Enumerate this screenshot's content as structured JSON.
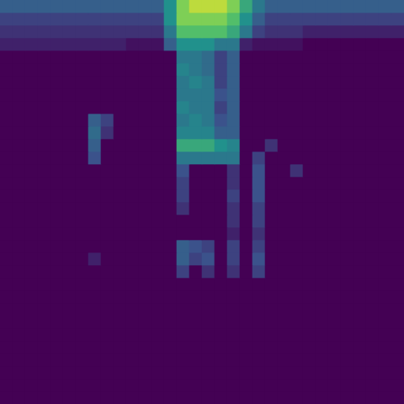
{
  "chart_data": {
    "type": "heatmap",
    "tick_labels": false,
    "grid": false,
    "cells": [
      [
        0.3,
        0.3,
        0.3,
        0.3,
        0.3,
        0.3,
        0.3,
        0.3,
        0.3,
        0.3,
        0.3,
        0.3,
        0.3,
        0.5,
        0.8,
        0.9,
        0.9,
        0.9,
        0.8,
        0.6,
        0.4,
        0.3,
        0.3,
        0.3,
        0.3,
        0.3,
        0.3,
        0.3,
        0.3,
        0.3,
        0.3,
        0.3
      ],
      [
        0.2,
        0.2,
        0.2,
        0.2,
        0.2,
        0.2,
        0.2,
        0.2,
        0.2,
        0.2,
        0.2,
        0.2,
        0.2,
        0.5,
        0.8,
        0.8,
        0.8,
        0.8,
        0.7,
        0.5,
        0.3,
        0.2,
        0.2,
        0.2,
        0.2,
        0.2,
        0.2,
        0.2,
        0.2,
        0.2,
        0.2,
        0.2
      ],
      [
        0.15,
        0.15,
        0.15,
        0.15,
        0.15,
        0.15,
        0.15,
        0.15,
        0.15,
        0.15,
        0.15,
        0.15,
        0.15,
        0.4,
        0.7,
        0.7,
        0.7,
        0.7,
        0.6,
        0.4,
        0.2,
        0.15,
        0.15,
        0.15,
        0.1,
        0.1,
        0.1,
        0.1,
        0.1,
        0.1,
        0.1,
        0.1
      ],
      [
        0.1,
        0.1,
        0.1,
        0.1,
        0.1,
        0.1,
        0.1,
        0.1,
        0.1,
        0.1,
        0.05,
        0.05,
        0.05,
        0.3,
        0.5,
        0.5,
        0.5,
        0.4,
        0.4,
        0.1,
        0.05,
        0.05,
        0.05,
        0.05,
        0,
        0,
        0,
        0,
        0,
        0,
        0,
        0
      ],
      [
        0,
        0,
        0,
        0,
        0,
        0,
        0,
        0,
        0,
        0,
        0,
        0,
        0,
        0,
        0.4,
        0.4,
        0.35,
        0.2,
        0.3,
        0,
        0,
        0,
        0,
        0,
        0,
        0,
        0,
        0,
        0,
        0,
        0,
        0
      ],
      [
        0,
        0,
        0,
        0,
        0,
        0,
        0,
        0,
        0,
        0,
        0,
        0,
        0,
        0,
        0.45,
        0.4,
        0.35,
        0.2,
        0.3,
        0,
        0,
        0,
        0,
        0,
        0,
        0,
        0,
        0,
        0,
        0,
        0,
        0
      ],
      [
        0,
        0,
        0,
        0,
        0,
        0,
        0,
        0,
        0,
        0,
        0,
        0,
        0,
        0,
        0.4,
        0.45,
        0.4,
        0.2,
        0.3,
        0,
        0,
        0,
        0,
        0,
        0,
        0,
        0,
        0,
        0,
        0,
        0,
        0
      ],
      [
        0,
        0,
        0,
        0,
        0,
        0,
        0,
        0,
        0,
        0,
        0,
        0,
        0,
        0,
        0.4,
        0.4,
        0.4,
        0.25,
        0.3,
        0,
        0,
        0,
        0,
        0,
        0,
        0,
        0,
        0,
        0,
        0,
        0,
        0
      ],
      [
        0,
        0,
        0,
        0,
        0,
        0,
        0,
        0,
        0,
        0,
        0,
        0,
        0,
        0,
        0.45,
        0.4,
        0.4,
        0.2,
        0.3,
        0,
        0,
        0,
        0,
        0,
        0,
        0,
        0,
        0,
        0,
        0,
        0,
        0
      ],
      [
        0,
        0,
        0,
        0,
        0,
        0,
        0,
        0.3,
        0.2,
        0,
        0,
        0,
        0,
        0,
        0.4,
        0.45,
        0.4,
        0.25,
        0.3,
        0,
        0,
        0,
        0,
        0,
        0,
        0,
        0,
        0,
        0,
        0,
        0,
        0
      ],
      [
        0,
        0,
        0,
        0,
        0,
        0,
        0,
        0.35,
        0.15,
        0,
        0,
        0,
        0,
        0,
        0.45,
        0.45,
        0.45,
        0.3,
        0.3,
        0,
        0,
        0,
        0,
        0,
        0,
        0,
        0,
        0,
        0,
        0,
        0,
        0
      ],
      [
        0,
        0,
        0,
        0,
        0,
        0,
        0,
        0.3,
        0,
        0,
        0,
        0,
        0,
        0,
        0.6,
        0.6,
        0.6,
        0.5,
        0.45,
        0,
        0,
        0.15,
        0,
        0,
        0,
        0,
        0,
        0,
        0,
        0,
        0,
        0
      ],
      [
        0,
        0,
        0,
        0,
        0,
        0,
        0,
        0.25,
        0,
        0,
        0,
        0,
        0,
        0,
        0.4,
        0.4,
        0.4,
        0.4,
        0.4,
        0,
        0.2,
        0,
        0,
        0,
        0,
        0,
        0,
        0,
        0,
        0,
        0,
        0
      ],
      [
        0,
        0,
        0,
        0,
        0,
        0,
        0,
        0,
        0,
        0,
        0,
        0,
        0,
        0,
        0.25,
        0,
        0,
        0,
        0.15,
        0,
        0.25,
        0,
        0,
        0.15,
        0,
        0,
        0,
        0,
        0,
        0,
        0,
        0
      ],
      [
        0,
        0,
        0,
        0,
        0,
        0,
        0,
        0,
        0,
        0,
        0,
        0,
        0,
        0,
        0.2,
        0,
        0,
        0,
        0.15,
        0,
        0.25,
        0,
        0,
        0,
        0,
        0,
        0,
        0,
        0,
        0,
        0,
        0
      ],
      [
        0,
        0,
        0,
        0,
        0,
        0,
        0,
        0,
        0,
        0,
        0,
        0,
        0,
        0,
        0.2,
        0,
        0,
        0,
        0.2,
        0,
        0.25,
        0,
        0,
        0,
        0,
        0,
        0,
        0,
        0,
        0,
        0,
        0
      ],
      [
        0,
        0,
        0,
        0,
        0,
        0,
        0,
        0,
        0,
        0,
        0,
        0,
        0,
        0,
        0.15,
        0,
        0,
        0,
        0.15,
        0,
        0.2,
        0,
        0,
        0,
        0,
        0,
        0,
        0,
        0,
        0,
        0,
        0
      ],
      [
        0,
        0,
        0,
        0,
        0,
        0,
        0,
        0,
        0,
        0,
        0,
        0,
        0,
        0,
        0,
        0,
        0,
        0,
        0.15,
        0,
        0.2,
        0,
        0,
        0,
        0,
        0,
        0,
        0,
        0,
        0,
        0,
        0
      ],
      [
        0,
        0,
        0,
        0,
        0,
        0,
        0,
        0,
        0,
        0,
        0,
        0,
        0,
        0,
        0,
        0,
        0,
        0,
        0.1,
        0,
        0.15,
        0,
        0,
        0,
        0,
        0,
        0,
        0,
        0,
        0,
        0,
        0
      ],
      [
        0,
        0,
        0,
        0,
        0,
        0,
        0,
        0,
        0,
        0,
        0,
        0,
        0,
        0,
        0.3,
        0.25,
        0.2,
        0,
        0.2,
        0,
        0.2,
        0,
        0,
        0,
        0,
        0,
        0,
        0,
        0,
        0,
        0,
        0
      ],
      [
        0,
        0,
        0,
        0,
        0,
        0,
        0,
        0.1,
        0,
        0,
        0,
        0,
        0,
        0,
        0.3,
        0.2,
        0.25,
        0,
        0.2,
        0,
        0.25,
        0,
        0,
        0,
        0,
        0,
        0,
        0,
        0,
        0,
        0,
        0
      ],
      [
        0,
        0,
        0,
        0,
        0,
        0,
        0,
        0,
        0,
        0,
        0,
        0,
        0,
        0,
        0.2,
        0,
        0.15,
        0,
        0.15,
        0,
        0.2,
        0,
        0,
        0,
        0,
        0,
        0,
        0,
        0,
        0,
        0,
        0
      ],
      [
        0,
        0,
        0,
        0,
        0,
        0,
        0,
        0,
        0,
        0,
        0,
        0,
        0,
        0,
        0,
        0,
        0,
        0,
        0,
        0,
        0,
        0,
        0,
        0,
        0,
        0,
        0,
        0,
        0,
        0,
        0,
        0
      ],
      [
        0,
        0,
        0,
        0,
        0,
        0,
        0,
        0,
        0,
        0,
        0,
        0,
        0,
        0,
        0,
        0,
        0,
        0,
        0,
        0,
        0,
        0,
        0,
        0,
        0,
        0,
        0,
        0,
        0,
        0,
        0,
        0
      ],
      [
        0,
        0,
        0,
        0,
        0,
        0,
        0,
        0,
        0,
        0,
        0,
        0,
        0,
        0,
        0,
        0,
        0,
        0,
        0,
        0,
        0,
        0,
        0,
        0,
        0,
        0,
        0,
        0,
        0,
        0,
        0,
        0
      ],
      [
        0,
        0,
        0,
        0,
        0,
        0,
        0,
        0,
        0,
        0,
        0,
        0,
        0,
        0,
        0,
        0,
        0,
        0,
        0,
        0,
        0,
        0,
        0,
        0,
        0,
        0,
        0,
        0,
        0,
        0,
        0,
        0
      ],
      [
        0,
        0,
        0,
        0,
        0,
        0,
        0,
        0,
        0,
        0,
        0,
        0,
        0,
        0,
        0,
        0,
        0,
        0,
        0,
        0,
        0,
        0,
        0,
        0,
        0,
        0,
        0,
        0,
        0,
        0,
        0,
        0
      ],
      [
        0,
        0,
        0,
        0,
        0,
        0,
        0,
        0,
        0,
        0,
        0,
        0,
        0,
        0,
        0,
        0,
        0,
        0,
        0,
        0,
        0,
        0,
        0,
        0,
        0,
        0,
        0,
        0,
        0,
        0,
        0,
        0
      ],
      [
        0,
        0,
        0,
        0,
        0,
        0,
        0,
        0,
        0,
        0,
        0,
        0,
        0,
        0,
        0,
        0,
        0,
        0,
        0,
        0,
        0,
        0,
        0,
        0,
        0,
        0,
        0,
        0,
        0,
        0,
        0,
        0
      ],
      [
        0,
        0,
        0,
        0,
        0,
        0,
        0,
        0,
        0,
        0,
        0,
        0,
        0,
        0,
        0,
        0,
        0,
        0,
        0,
        0,
        0,
        0,
        0,
        0,
        0,
        0,
        0,
        0,
        0,
        0,
        0,
        0
      ],
      [
        0,
        0,
        0,
        0,
        0,
        0,
        0,
        0,
        0,
        0,
        0,
        0,
        0,
        0,
        0,
        0,
        0,
        0,
        0,
        0,
        0,
        0,
        0,
        0,
        0,
        0,
        0,
        0,
        0,
        0,
        0,
        0
      ],
      [
        0,
        0,
        0,
        0,
        0,
        0,
        0,
        0,
        0,
        0,
        0,
        0,
        0,
        0,
        0,
        0,
        0,
        0,
        0,
        0,
        0,
        0,
        0,
        0,
        0,
        0,
        0,
        0,
        0,
        0,
        0,
        0
      ]
    ]
  }
}
